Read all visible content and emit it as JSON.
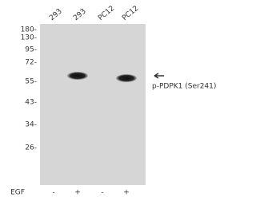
{
  "lanes": [
    "293",
    "293",
    "PC12",
    "PC12"
  ],
  "markers": [
    "180-",
    "130-",
    "95-",
    "72-",
    "55-",
    "43-",
    "34-",
    "26-"
  ],
  "treatment": {
    "label": "EGF",
    "values": [
      "-",
      "+",
      "-",
      "+"
    ]
  },
  "band_label": "p-PDPK1 (Ser241)"
}
